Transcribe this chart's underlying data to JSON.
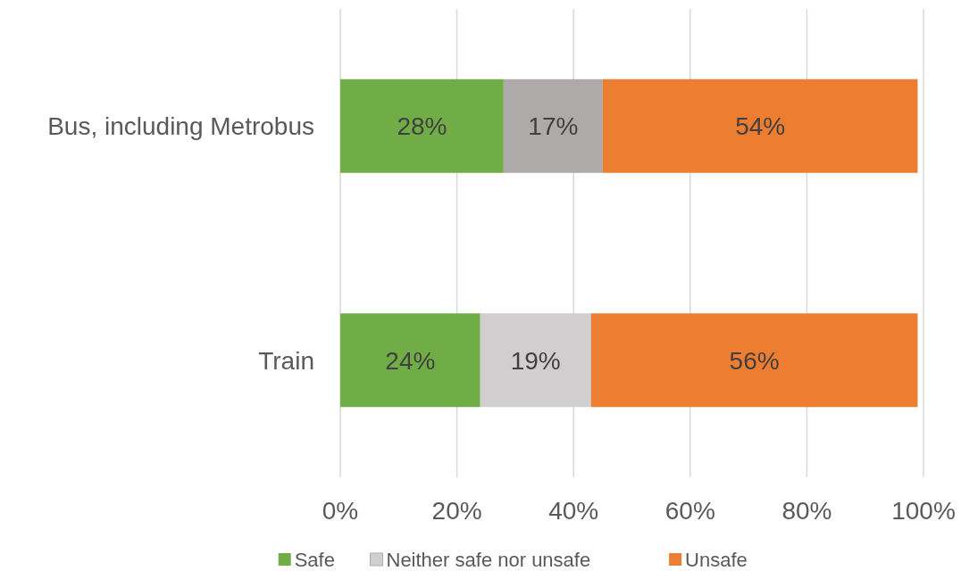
{
  "chart_data": {
    "type": "bar",
    "orientation": "horizontal",
    "stacked": true,
    "categories": [
      "Bus, including Metrobus",
      "Train"
    ],
    "series": [
      {
        "name": "Safe",
        "color": "#70ad47",
        "values": [
          28,
          24
        ]
      },
      {
        "name": "Neither safe nor unsafe",
        "color": "#d0cece",
        "colors": [
          "#aeaaaa",
          "#d0cece"
        ],
        "values": [
          17,
          19
        ]
      },
      {
        "name": "Unsafe",
        "color": "#ed7d31",
        "values": [
          54,
          56
        ]
      }
    ],
    "xlim": [
      0,
      100
    ],
    "xticks": [
      {
        "value": 0,
        "label": "0%"
      },
      {
        "value": 20,
        "label": "20%"
      },
      {
        "value": 40,
        "label": "40%"
      },
      {
        "value": 60,
        "label": "60%"
      },
      {
        "value": 80,
        "label": "80%"
      },
      {
        "value": 100,
        "label": "100%"
      }
    ],
    "value_labels": [
      [
        "28%",
        "24%"
      ],
      [
        "17%",
        "19%"
      ],
      [
        "54%",
        "56%"
      ]
    ],
    "grid": "x",
    "legend": "bottom"
  }
}
